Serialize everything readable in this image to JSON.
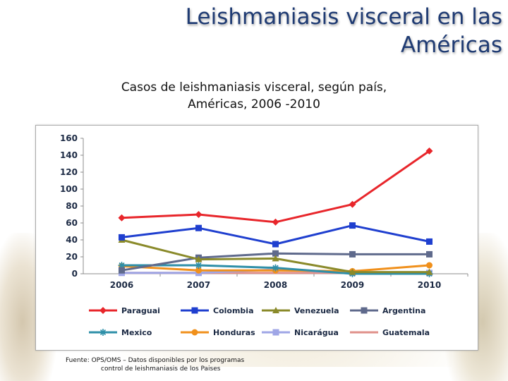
{
  "title": {
    "line1": "Leishmaniasis visceral en las",
    "line2": "Américas"
  },
  "subtitle": {
    "line1": "Casos de leishmaniasis visceral, según país,",
    "line2": "Américas, 2006 -2010"
  },
  "source": {
    "line1": "Fuente: OPS/OMS – Datos disponibles por los programas",
    "line2": "control de leishmaniasis de los Paises"
  },
  "chart_data": {
    "type": "line",
    "title": "",
    "xlabel": "",
    "ylabel": "",
    "categories": [
      "2006",
      "2007",
      "2008",
      "2009",
      "2010"
    ],
    "ylim": [
      0,
      160
    ],
    "yticks": [
      0,
      20,
      40,
      60,
      80,
      100,
      120,
      140,
      160
    ],
    "grid": false,
    "legend_position": "bottom",
    "series": [
      {
        "name": "Paraguai",
        "color": "#e8262b",
        "marker": "diamond",
        "values": [
          66,
          70,
          61,
          82,
          145
        ]
      },
      {
        "name": "Colombia",
        "color": "#1f3fcf",
        "marker": "square",
        "values": [
          43,
          54,
          35,
          57,
          38
        ]
      },
      {
        "name": "Venezuela",
        "color": "#8a8a2a",
        "marker": "triangle",
        "values": [
          40,
          17,
          18,
          2,
          2
        ]
      },
      {
        "name": "Argentina",
        "color": "#5f6a8c",
        "marker": "square",
        "values": [
          4,
          19,
          24,
          23,
          23
        ]
      },
      {
        "name": "Mexico",
        "color": "#2e8fa8",
        "marker": "star",
        "values": [
          10,
          10,
          7,
          0,
          0
        ]
      },
      {
        "name": "Honduras",
        "color": "#f0901c",
        "marker": "circle",
        "values": [
          9,
          4,
          4,
          3,
          10
        ]
      },
      {
        "name": "Nicarágua",
        "color": "#9fa6e6",
        "marker": "square",
        "values": [
          1,
          1,
          5,
          1,
          1
        ]
      },
      {
        "name": "Guatemala",
        "color": "#e0908a",
        "marker": "none",
        "values": [
          1,
          1,
          1,
          1,
          1
        ]
      }
    ]
  }
}
